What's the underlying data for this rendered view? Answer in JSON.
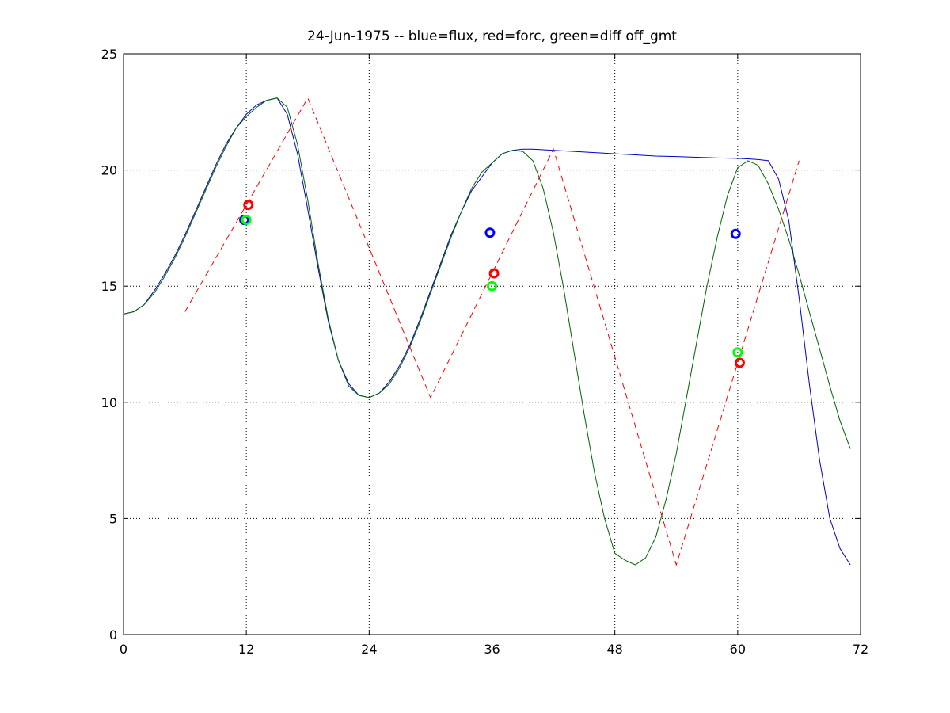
{
  "chart_data": {
    "type": "line",
    "title": "24-Jun-1975 -- blue=flux, red=forc, green=diff off_gmt",
    "xlabel": "",
    "ylabel": "",
    "xlim": [
      0,
      72
    ],
    "ylim": [
      0,
      25
    ],
    "xticks": [
      0,
      12,
      24,
      36,
      48,
      60,
      72
    ],
    "yticks": [
      0,
      5,
      10,
      15,
      20,
      25
    ],
    "xtick_labels": [
      "0",
      "12",
      "24",
      "36",
      "48",
      "60",
      "72"
    ],
    "ytick_labels": [
      "0",
      "5",
      "10",
      "15",
      "20",
      "25"
    ],
    "grid": "dotted",
    "series": [
      {
        "color": "#0000c8",
        "style": "solid",
        "x": [
          0,
          1,
          2,
          3,
          4,
          5,
          6,
          7,
          8,
          9,
          10,
          11,
          12,
          13,
          14,
          15,
          16,
          17,
          18,
          19,
          20,
          21,
          22,
          23,
          24,
          25,
          26,
          27,
          28,
          29,
          30,
          31,
          32,
          33,
          34,
          35,
          36,
          37,
          38,
          39,
          40,
          42,
          44,
          46,
          48,
          50,
          52,
          54,
          56,
          58,
          60,
          61,
          62,
          63,
          64,
          65,
          66,
          67,
          68,
          69,
          70,
          71
        ],
        "y": [
          13.8,
          13.9,
          14.2,
          14.8,
          15.5,
          16.3,
          17.2,
          18.2,
          19.2,
          20.2,
          21.1,
          21.8,
          22.4,
          22.8,
          23.0,
          23.1,
          22.4,
          20.7,
          18.3,
          15.8,
          13.5,
          11.8,
          10.8,
          10.3,
          10.2,
          10.4,
          10.9,
          11.6,
          12.5,
          13.6,
          14.8,
          16.0,
          17.2,
          18.2,
          19.1,
          19.7,
          20.3,
          20.7,
          20.85,
          20.9,
          20.9,
          20.85,
          20.8,
          20.75,
          20.7,
          20.65,
          20.6,
          20.58,
          20.55,
          20.52,
          20.5,
          20.48,
          20.45,
          20.4,
          19.6,
          17.8,
          14.5,
          10.8,
          7.5,
          5.0,
          3.7,
          3.0
        ]
      },
      {
        "color": "#006400",
        "style": "solid",
        "x": [
          0,
          1,
          2,
          3,
          4,
          5,
          6,
          7,
          8,
          9,
          10,
          11,
          12,
          13,
          14,
          15,
          16,
          17,
          18,
          19,
          20,
          21,
          22,
          23,
          24,
          25,
          26,
          27,
          28,
          29,
          30,
          31,
          32,
          33,
          34,
          35,
          36,
          37,
          38,
          39,
          40,
          41,
          42,
          43,
          44,
          45,
          46,
          47,
          48,
          49,
          50,
          51,
          52,
          53,
          54,
          55,
          56,
          57,
          58,
          59,
          60,
          61,
          62,
          63,
          64,
          65,
          66,
          67,
          68,
          69,
          70,
          71
        ],
        "y": [
          13.8,
          13.9,
          14.2,
          14.7,
          15.4,
          16.2,
          17.1,
          18.1,
          19.1,
          20.1,
          21.0,
          21.8,
          22.3,
          22.7,
          23.0,
          23.1,
          22.7,
          21.1,
          18.7,
          16.0,
          13.6,
          11.8,
          10.7,
          10.3,
          10.2,
          10.4,
          10.8,
          11.5,
          12.4,
          13.5,
          14.7,
          15.9,
          17.1,
          18.2,
          19.2,
          19.9,
          20.3,
          20.7,
          20.85,
          20.8,
          20.4,
          19.2,
          17.3,
          14.9,
          12.2,
          9.5,
          7.0,
          5.0,
          3.5,
          3.2,
          3.0,
          3.3,
          4.2,
          5.8,
          7.8,
          10.2,
          12.6,
          15.0,
          17.1,
          18.9,
          20.1,
          20.4,
          20.2,
          19.4,
          18.3,
          17.0,
          15.5,
          13.9,
          12.3,
          10.7,
          9.2,
          8.0
        ]
      },
      {
        "color": "#ff0000",
        "style": "dashed",
        "x": [
          6,
          18,
          30,
          42,
          54,
          66
        ],
        "y": [
          13.9,
          23.1,
          10.2,
          20.9,
          3.0,
          20.4
        ]
      }
    ],
    "markers": [
      {
        "color": "#0000ff",
        "x": 11.8,
        "y": 17.85
      },
      {
        "color": "#0000ff",
        "x": 35.8,
        "y": 17.3
      },
      {
        "color": "#0000ff",
        "x": 59.8,
        "y": 17.25
      },
      {
        "color": "#ff0000",
        "x": 12.2,
        "y": 18.5
      },
      {
        "color": "#ff0000",
        "x": 36.2,
        "y": 15.55
      },
      {
        "color": "#ff0000",
        "x": 60.2,
        "y": 11.7
      },
      {
        "color": "#00ff00",
        "x": 12.0,
        "y": 17.85
      },
      {
        "color": "#00ff00",
        "x": 36.0,
        "y": 15.0
      },
      {
        "color": "#00ff00",
        "x": 60.0,
        "y": 12.15
      }
    ]
  }
}
